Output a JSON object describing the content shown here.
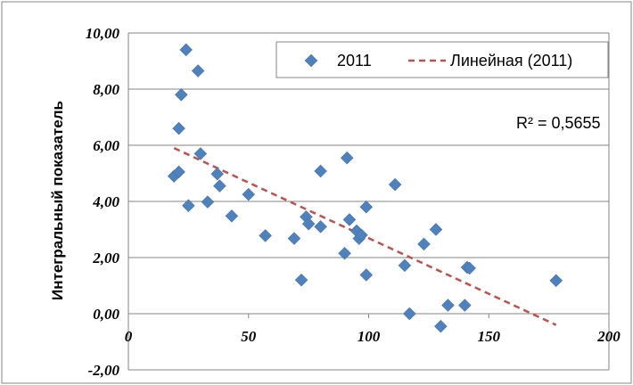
{
  "chart_data": {
    "type": "scatter",
    "ylabel": "Интегральный показатель",
    "xlim": [
      0,
      200
    ],
    "ylim": [
      -2,
      10
    ],
    "x_ticks": [
      "0",
      "50",
      "100",
      "150",
      "200"
    ],
    "y_ticks": [
      "-2,00",
      "0,00",
      "2,00",
      "4,00",
      "6,00",
      "8,00",
      "10,00"
    ],
    "grid": "horizontal",
    "legend_position": "top-right",
    "legend": [
      "2011",
      "Линейная (2011)"
    ],
    "r_squared_label": "R² = 0,5655",
    "series": [
      {
        "name": "2011",
        "color": "#4f81bd",
        "marker": "diamond",
        "points": [
          [
            19,
            4.9
          ],
          [
            21,
            5.05
          ],
          [
            21,
            6.6
          ],
          [
            22,
            7.8
          ],
          [
            24,
            9.4
          ],
          [
            25,
            3.85
          ],
          [
            29,
            8.65
          ],
          [
            30,
            5.7
          ],
          [
            33,
            3.98
          ],
          [
            37,
            4.98
          ],
          [
            38,
            4.55
          ],
          [
            43,
            3.48
          ],
          [
            50,
            4.25
          ],
          [
            57,
            2.78
          ],
          [
            69,
            2.68
          ],
          [
            72,
            1.2
          ],
          [
            74,
            3.45
          ],
          [
            75,
            3.2
          ],
          [
            80,
            3.1
          ],
          [
            80,
            5.08
          ],
          [
            90,
            2.15
          ],
          [
            91,
            5.55
          ],
          [
            92,
            3.35
          ],
          [
            95,
            2.95
          ],
          [
            96,
            2.68
          ],
          [
            97,
            2.8
          ],
          [
            99,
            3.8
          ],
          [
            99,
            1.38
          ],
          [
            111,
            4.6
          ],
          [
            115,
            1.72
          ],
          [
            117,
            0.0
          ],
          [
            123,
            2.48
          ],
          [
            128,
            3.0
          ],
          [
            130,
            -0.45
          ],
          [
            133,
            0.3
          ],
          [
            140,
            0.3
          ],
          [
            141,
            1.65
          ],
          [
            142,
            1.62
          ],
          [
            178,
            1.18
          ]
        ]
      },
      {
        "name": "Линейная (2011)",
        "color": "#c0504d",
        "style": "dashed",
        "points": [
          [
            19,
            5.9
          ],
          [
            178,
            -0.4
          ]
        ]
      }
    ]
  }
}
